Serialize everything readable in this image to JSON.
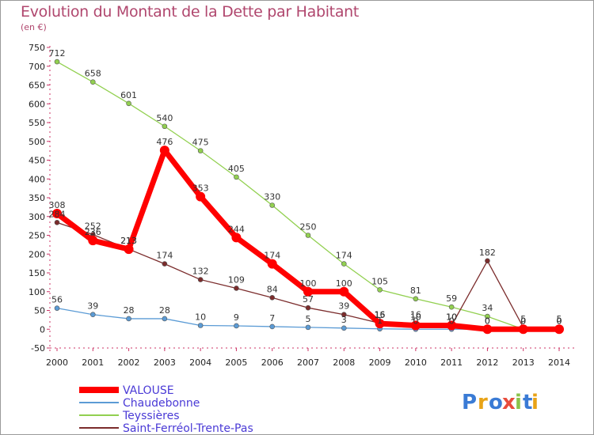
{
  "chart_data": {
    "type": "line",
    "title": "Evolution du Montant de la Dette par Habitant",
    "subtitle": "(en €)",
    "categories": [
      "2000",
      "2001",
      "2002",
      "2003",
      "2004",
      "2005",
      "2006",
      "2007",
      "2008",
      "2009",
      "2010",
      "2011",
      "2012",
      "2013",
      "2014"
    ],
    "ylim": [
      -50,
      750
    ],
    "yticks": [
      -50,
      0,
      50,
      100,
      150,
      200,
      250,
      300,
      350,
      400,
      450,
      500,
      550,
      600,
      650,
      700,
      750
    ],
    "grid": false,
    "legend_position": "bottom-left",
    "series": [
      {
        "name": "VALOUSE",
        "color": "#ff0000",
        "values": [
          308,
          236,
          213,
          476,
          353,
          244,
          174,
          100,
          100,
          15,
          10,
          10,
          0,
          0,
          0
        ]
      },
      {
        "name": "Chaudebonne",
        "color": "#5b9bd5",
        "values": [
          56,
          39,
          28,
          28,
          10,
          9,
          7,
          5,
          3,
          1,
          0,
          0,
          0,
          0,
          0
        ]
      },
      {
        "name": "Teyssières",
        "color": "#92d050",
        "values": [
          712,
          658,
          601,
          540,
          475,
          405,
          330,
          250,
          174,
          105,
          81,
          59,
          34,
          0,
          0
        ]
      },
      {
        "name": "Saint-Ferréol-Trente-Pas",
        "color": "#7b2c2c",
        "values": [
          284,
          252,
          213,
          174,
          132,
          109,
          84,
          57,
          39,
          16,
          16,
          10,
          182,
          5,
          5
        ]
      }
    ]
  },
  "logo": {
    "letters": [
      "P",
      "r",
      "o",
      "x",
      "i",
      "t",
      "i"
    ],
    "colors": [
      "#3a7bd5",
      "#e8a317",
      "#3a7bd5",
      "#e84c3d",
      "#8bc34a",
      "#3a7bd5",
      "#e8a317"
    ]
  }
}
